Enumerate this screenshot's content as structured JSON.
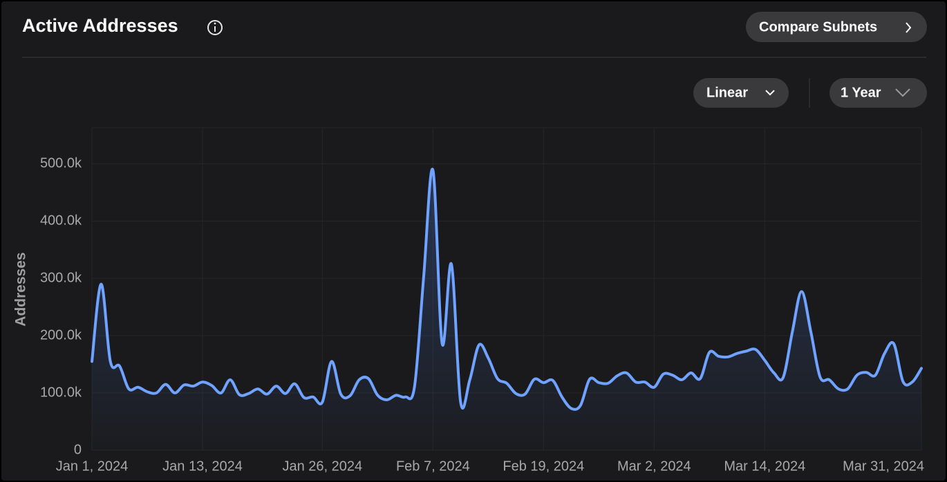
{
  "chart_data": {
    "type": "area",
    "title": "Active Addresses",
    "compare_button": "Compare Subnets",
    "scale_select": "Linear",
    "range_select": "1 Year",
    "y_label": "Addresses",
    "color": "#6fa3ff",
    "grid": true,
    "x": [
      "2024-01-01",
      "2024-01-02",
      "2024-01-03",
      "2024-01-04",
      "2024-01-05",
      "2024-01-06",
      "2024-01-07",
      "2024-01-08",
      "2024-01-09",
      "2024-01-10",
      "2024-01-11",
      "2024-01-12",
      "2024-01-13",
      "2024-01-14",
      "2024-01-15",
      "2024-01-16",
      "2024-01-17",
      "2024-01-18",
      "2024-01-19",
      "2024-01-20",
      "2024-01-21",
      "2024-01-22",
      "2024-01-23",
      "2024-01-24",
      "2024-01-25",
      "2024-01-26",
      "2024-01-27",
      "2024-01-28",
      "2024-01-29",
      "2024-01-30",
      "2024-01-31",
      "2024-02-01",
      "2024-02-02",
      "2024-02-03",
      "2024-02-04",
      "2024-02-05",
      "2024-02-06",
      "2024-02-07",
      "2024-02-08",
      "2024-02-09",
      "2024-02-10",
      "2024-02-11",
      "2024-02-12",
      "2024-02-13",
      "2024-02-14",
      "2024-02-15",
      "2024-02-16",
      "2024-02-17",
      "2024-02-18",
      "2024-02-19",
      "2024-02-20",
      "2024-02-21",
      "2024-02-22",
      "2024-02-23",
      "2024-02-24",
      "2024-02-25",
      "2024-02-26",
      "2024-02-27",
      "2024-02-28",
      "2024-02-29",
      "2024-03-01",
      "2024-03-02",
      "2024-03-03",
      "2024-03-04",
      "2024-03-05",
      "2024-03-06",
      "2024-03-07",
      "2024-03-08",
      "2024-03-09",
      "2024-03-10",
      "2024-03-11",
      "2024-03-12",
      "2024-03-13",
      "2024-03-14",
      "2024-03-15",
      "2024-03-16",
      "2024-03-17",
      "2024-03-18",
      "2024-03-19",
      "2024-03-20",
      "2024-03-21",
      "2024-03-22",
      "2024-03-23",
      "2024-03-24",
      "2024-03-25",
      "2024-03-26",
      "2024-03-27",
      "2024-03-28",
      "2024-03-29",
      "2024-03-30",
      "2024-03-31"
    ],
    "values": [
      155000,
      290000,
      155000,
      147000,
      107000,
      110000,
      102000,
      100000,
      115000,
      100000,
      114000,
      112000,
      119000,
      113000,
      100000,
      123000,
      97000,
      99000,
      107000,
      98000,
      112000,
      99000,
      116000,
      92000,
      93000,
      84000,
      155000,
      98000,
      95000,
      123000,
      125000,
      96000,
      88000,
      96000,
      93000,
      111000,
      304000,
      489000,
      186000,
      325000,
      84000,
      123000,
      184000,
      161000,
      125000,
      117000,
      99000,
      98000,
      124000,
      118000,
      122000,
      93000,
      73000,
      78000,
      124000,
      118000,
      117000,
      130000,
      135000,
      119000,
      119000,
      110000,
      133000,
      131000,
      123000,
      135000,
      125000,
      171000,
      164000,
      163000,
      169000,
      173000,
      176000,
      157000,
      135000,
      127000,
      207000,
      277000,
      207000,
      128000,
      123000,
      107000,
      107000,
      131000,
      136000,
      131000,
      169000,
      186000,
      120000,
      119000,
      143000
    ],
    "xlim": [
      "2024-01-01",
      "2024-03-31"
    ],
    "xticks": [
      {
        "value": "2024-01-01",
        "label": "Jan 1, 2024"
      },
      {
        "value": "2024-01-13",
        "label": "Jan 13, 2024"
      },
      {
        "value": "2024-01-26",
        "label": "Jan 26, 2024"
      },
      {
        "value": "2024-02-07",
        "label": "Feb 7, 2024"
      },
      {
        "value": "2024-02-19",
        "label": "Feb 19, 2024"
      },
      {
        "value": "2024-03-02",
        "label": "Mar 2, 2024"
      },
      {
        "value": "2024-03-14",
        "label": "Mar 14, 2024"
      },
      {
        "value": "2024-03-31",
        "label": "Mar 31, 2024"
      }
    ],
    "ylim": [
      0,
      563000
    ],
    "yticks": [
      0,
      {
        "value": 100000,
        "label": "100.0k"
      },
      {
        "value": 200000,
        "label": "200.0k"
      },
      {
        "value": 300000,
        "label": "300.0k"
      },
      {
        "value": 400000,
        "label": "400.0k"
      },
      {
        "value": 500000,
        "label": "500.0k"
      }
    ]
  }
}
